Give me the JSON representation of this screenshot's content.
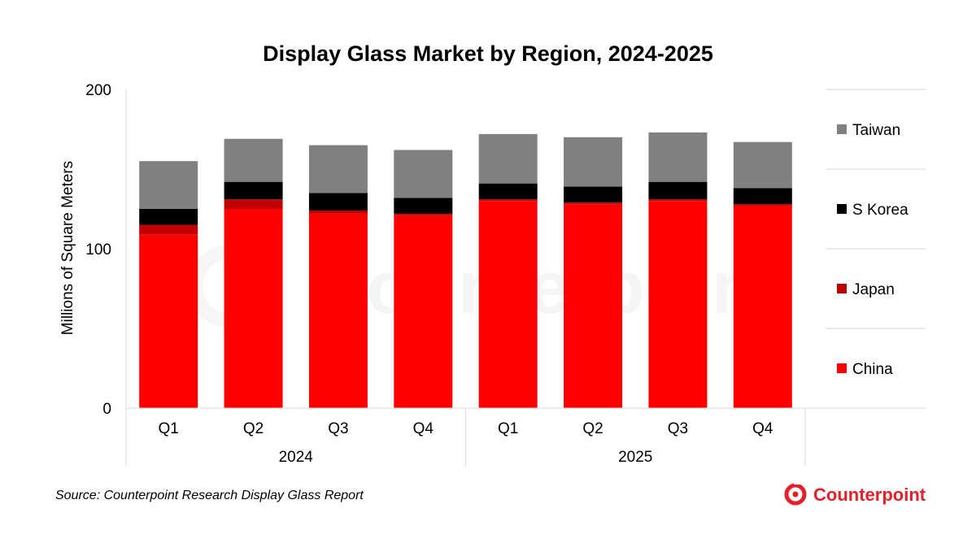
{
  "chart_data": {
    "type": "bar",
    "stacked": true,
    "title": "Display Glass Market by Region, 2024-2025",
    "ylabel": "Millions of Square Meters",
    "xlabel": "",
    "ylim": [
      0,
      200
    ],
    "yticks": [
      0,
      100,
      200
    ],
    "categories": [
      "Q1",
      "Q2",
      "Q3",
      "Q4",
      "Q1",
      "Q2",
      "Q3",
      "Q4"
    ],
    "groups": [
      {
        "label": "2024",
        "count": 4
      },
      {
        "label": "2025",
        "count": 4
      }
    ],
    "series": [
      {
        "name": "China",
        "color": "#ff0000",
        "values": [
          109,
          125,
          122,
          121,
          130,
          128,
          130,
          127
        ]
      },
      {
        "name": "Japan",
        "color": "#c00000",
        "values": [
          6,
          6,
          2,
          1,
          1,
          1,
          1,
          1
        ]
      },
      {
        "name": "S Korea",
        "color": "#000000",
        "values": [
          10,
          11,
          11,
          10,
          10,
          10,
          11,
          10
        ]
      },
      {
        "name": "Taiwan",
        "color": "#808080",
        "values": [
          30,
          27,
          30,
          30,
          31,
          31,
          31,
          29
        ]
      }
    ],
    "legend_order": [
      "Taiwan",
      "S Korea",
      "Japan",
      "China"
    ],
    "legend_position": "right"
  },
  "footer": {
    "source": "Source: Counterpoint Research Display Glass Report",
    "brand": "Counterpoint",
    "brand_color": "#e4202b",
    "watermark": "Counterpoint"
  }
}
